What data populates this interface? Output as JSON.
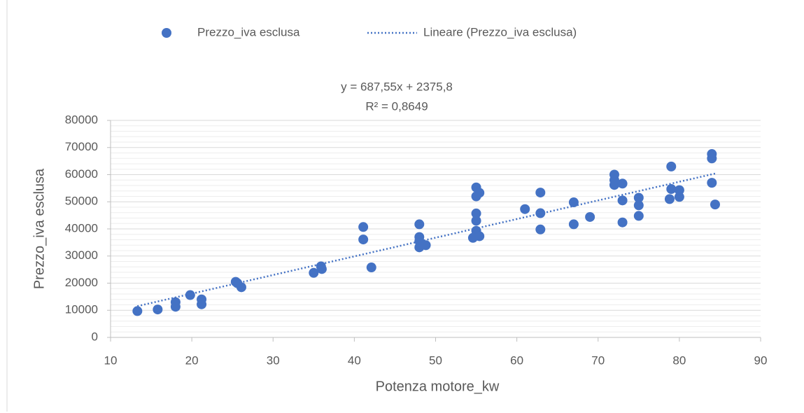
{
  "chart_data": {
    "type": "scatter",
    "xlabel": "Potenza motore_kw",
    "ylabel": "Prezzo_iva esclusa",
    "xlim": [
      10,
      90
    ],
    "xticks": [
      10,
      20,
      30,
      40,
      50,
      60,
      70,
      80,
      90
    ],
    "ylim": [
      0,
      80000
    ],
    "yticks": [
      0,
      10000,
      20000,
      30000,
      40000,
      50000,
      60000,
      70000,
      80000
    ],
    "grid": true,
    "minor_grid_step": 2000,
    "legend": "top",
    "series": [
      {
        "name": "Prezzo_iva esclusa",
        "color": "#4472c4",
        "x": [
          13.3,
          15.8,
          18,
          18,
          19.8,
          21.2,
          21.2,
          25.4,
          25.6,
          26.1,
          35,
          35.9,
          36,
          41.1,
          41.1,
          42.1,
          48,
          48,
          48,
          48,
          48.8,
          54.6,
          55,
          55,
          55,
          55,
          55,
          55,
          55.4,
          55.4,
          61,
          62.9,
          62.9,
          62.9,
          67,
          67,
          69,
          72,
          72,
          72,
          73,
          73,
          73,
          75,
          75,
          75,
          78.8,
          79,
          79,
          80,
          80,
          84,
          84,
          84,
          84.4
        ],
        "values": [
          9700,
          10300,
          13000,
          11300,
          15600,
          14000,
          12200,
          20500,
          20000,
          18500,
          23800,
          26200,
          25200,
          40700,
          36100,
          25800,
          41700,
          37000,
          35500,
          33200,
          34000,
          36700,
          55300,
          52000,
          45700,
          43000,
          39300,
          37600,
          53300,
          37300,
          47300,
          53400,
          45800,
          39800,
          49800,
          41700,
          44400,
          60000,
          56200,
          58000,
          56700,
          50500,
          42400,
          51500,
          48700,
          44800,
          51000,
          63000,
          54700,
          54300,
          51800,
          67600,
          66000,
          57000,
          49000
        ]
      }
    ],
    "trendline": {
      "name": "Lineare (Prezzo_iva esclusa)",
      "color": "#4472c4",
      "slope": 687.55,
      "intercept": 2375.8,
      "equation": "y = 687,55x + 2375,8",
      "r_squared": "R² = 0,8649"
    }
  }
}
